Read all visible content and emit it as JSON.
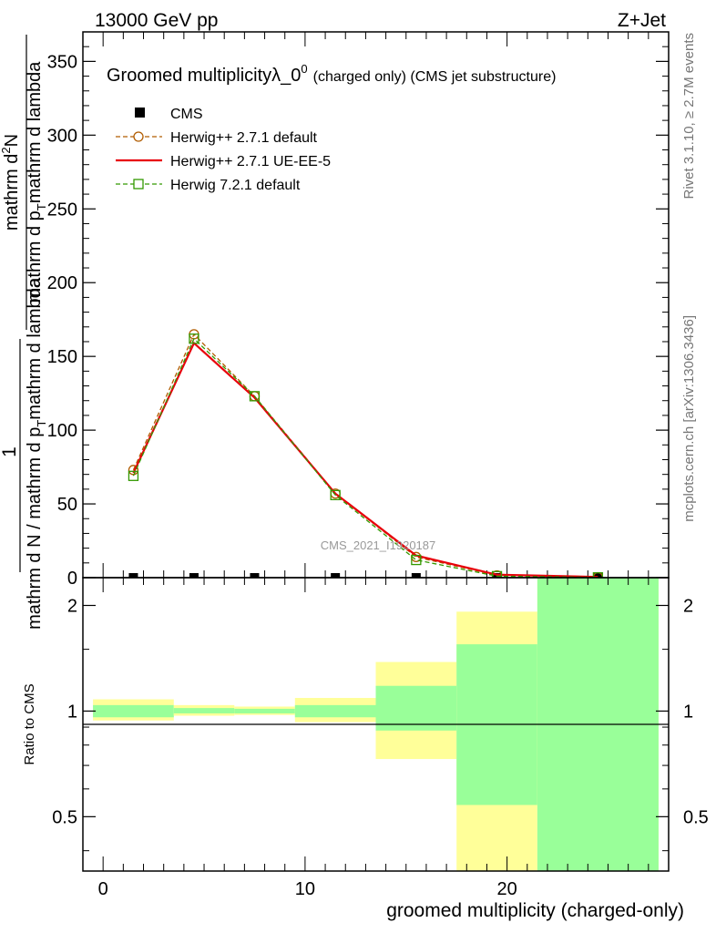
{
  "header": {
    "energy_label": "13000 GeV pp",
    "process_label": "Z+Jet",
    "rivet_label": "Rivet 3.1.10, ≥ 2.7M events",
    "mcplots_label": "mcplots.cern.ch [arXiv:1306.3436]",
    "watermark": "CMS_2021_I1920187"
  },
  "chart_data": [
    {
      "type": "line",
      "title_main": "Groomed multiplicityλ_0",
      "title_sup": "0",
      "title_sub": "(charged only) (CMS jet substructure)",
      "ylabel_numerator": "1",
      "ylabel_denominator_parts": [
        "mathrm d N / mathrm d p",
        "T",
        "mathrm d lambda"
      ],
      "ylabel_top": "mathrm d",
      "ylabel_top_sub": "2",
      "ylabel_top_n": "N",
      "ylabel_lines": [
        "mathrm d",
        "2",
        "N",
        "mathrm d p",
        "T",
        "mathrm d lambda",
        "mathrm d N / mathrm d p",
        "T",
        "mathrm d lambda"
      ],
      "ylim": [
        0,
        370
      ],
      "xlim": [
        -1,
        28
      ],
      "yticks": [
        0,
        50,
        100,
        150,
        200,
        250,
        300,
        350
      ],
      "x": [
        1.5,
        4.5,
        7.5,
        11.5,
        15.5,
        19.5,
        24.5
      ],
      "legend_position": "top-left",
      "series": [
        {
          "name": "CMS",
          "color": "#000000",
          "values": [
            0,
            0,
            0,
            0,
            0,
            0,
            0
          ]
        },
        {
          "name": "Herwig++ 2.7.1 default",
          "color": "#b15c00",
          "values": [
            73,
            165,
            123,
            57,
            14,
            1.5,
            0.3
          ]
        },
        {
          "name": "Herwig++ 2.7.1 UE-EE-5",
          "color": "#e8000b",
          "values": [
            71,
            159,
            122,
            57,
            15,
            2,
            0.5
          ]
        },
        {
          "name": "Herwig 7.2.1 default",
          "color": "#339900",
          "values": [
            69,
            162,
            123,
            56,
            12,
            1,
            0.2
          ]
        }
      ]
    },
    {
      "type": "area",
      "ylabel": "Ratio to CMS",
      "xlabel": "groomed multiplicity (charged-only)",
      "xticks": [
        0,
        10,
        20
      ],
      "yticks": [
        0.5,
        1,
        2
      ],
      "ylim": [
        0.35,
        2.4
      ],
      "bins": [
        {
          "lo": -0.5,
          "hi": 3.5,
          "yellow": [
            0.94,
            1.08
          ],
          "green": [
            0.96,
            1.04
          ]
        },
        {
          "lo": 3.5,
          "hi": 6.5,
          "yellow": [
            0.97,
            1.04
          ],
          "green": [
            0.985,
            1.02
          ]
        },
        {
          "lo": 6.5,
          "hi": 9.5,
          "yellow": [
            0.975,
            1.03
          ],
          "green": [
            0.985,
            1.015
          ]
        },
        {
          "lo": 9.5,
          "hi": 13.5,
          "yellow": [
            0.93,
            1.09
          ],
          "green": [
            0.96,
            1.04
          ]
        },
        {
          "lo": 13.5,
          "hi": 17.5,
          "yellow": [
            0.73,
            1.38
          ],
          "green": [
            0.88,
            1.18
          ]
        },
        {
          "lo": 17.5,
          "hi": 21.5,
          "yellow": [
            0.35,
            1.92
          ],
          "green": [
            0.54,
            1.55
          ]
        },
        {
          "lo": 21.5,
          "hi": 27.5,
          "yellow": [
            0.35,
            2.4
          ],
          "green": [
            0.35,
            2.4
          ]
        }
      ]
    }
  ]
}
